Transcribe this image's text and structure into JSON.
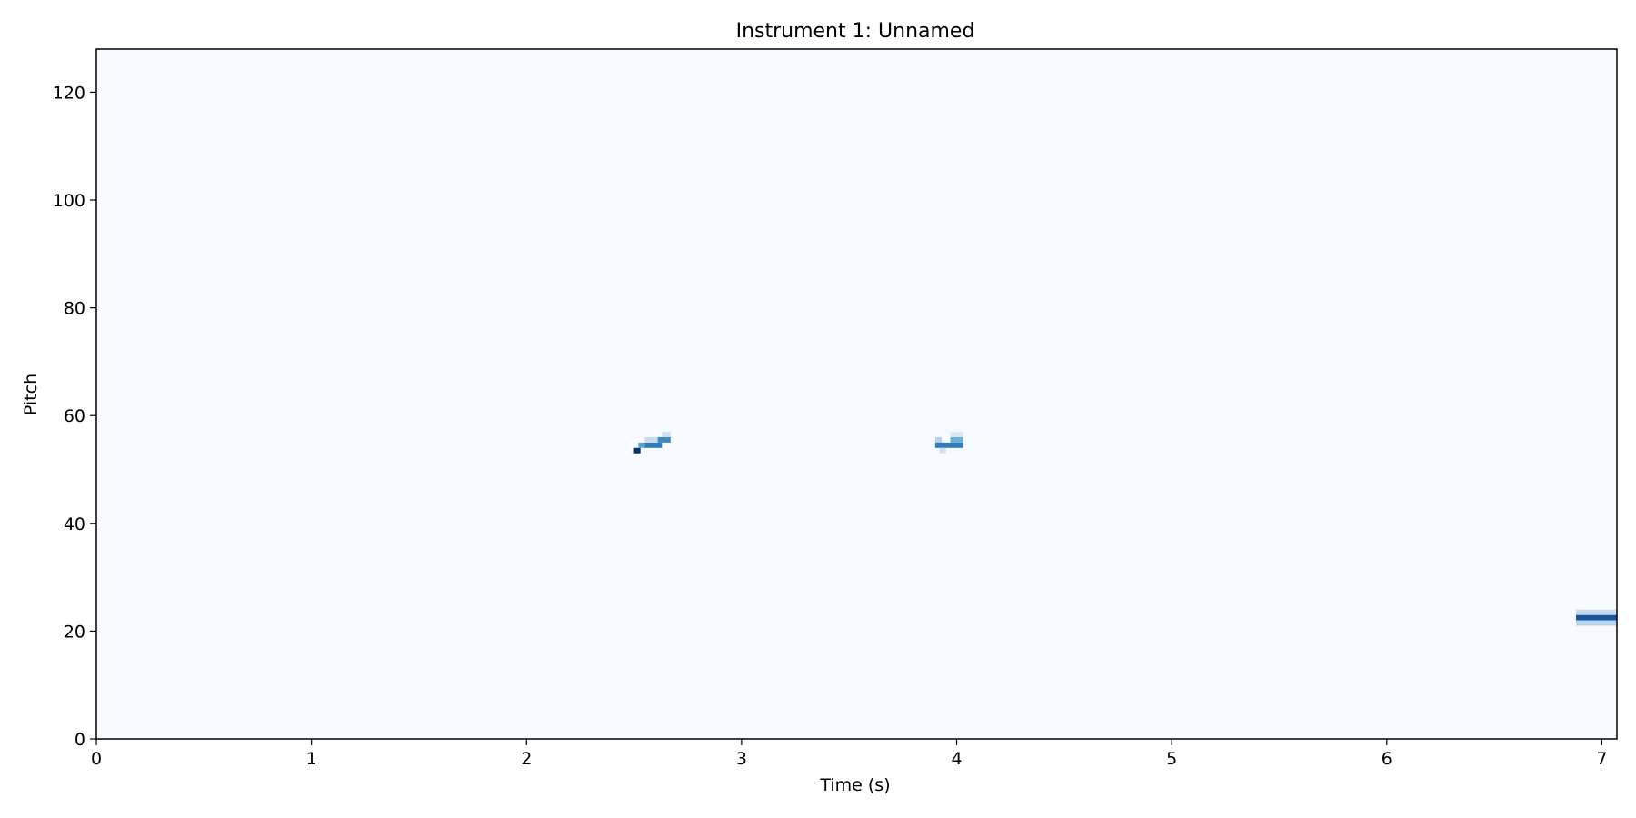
{
  "chart_data": {
    "type": "heatmap",
    "title": "Instrument 1: Unnamed",
    "xlabel": "Time (s)",
    "ylabel": "Pitch",
    "xlim": [
      0,
      7.07
    ],
    "ylim": [
      0,
      128
    ],
    "xticks": [
      0,
      1,
      2,
      3,
      4,
      5,
      6,
      7
    ],
    "yticks": [
      0,
      20,
      40,
      60,
      80,
      100,
      120
    ],
    "grid": false,
    "colormap": "Blues",
    "colors": {
      "background": "#f7fbff",
      "light": "#c6dbef",
      "mid": "#6baed6",
      "strong": "#2171b5",
      "darkest": "#08306b"
    },
    "notes": [
      {
        "pitch": 53,
        "start": 2.5,
        "end": 2.53,
        "intensity": 1.0
      },
      {
        "pitch": 54,
        "start": 2.52,
        "end": 2.55,
        "intensity": 0.55
      },
      {
        "pitch": 54,
        "start": 2.55,
        "end": 2.63,
        "intensity": 0.7
      },
      {
        "pitch": 55,
        "start": 2.55,
        "end": 2.63,
        "intensity": 0.25
      },
      {
        "pitch": 55,
        "start": 2.61,
        "end": 2.67,
        "intensity": 0.65
      },
      {
        "pitch": 56,
        "start": 2.63,
        "end": 2.67,
        "intensity": 0.2
      },
      {
        "pitch": 55,
        "start": 3.9,
        "end": 3.93,
        "intensity": 0.3
      },
      {
        "pitch": 54,
        "start": 3.9,
        "end": 4.03,
        "intensity": 0.7
      },
      {
        "pitch": 53,
        "start": 3.92,
        "end": 3.95,
        "intensity": 0.2
      },
      {
        "pitch": 55,
        "start": 3.97,
        "end": 4.03,
        "intensity": 0.5
      },
      {
        "pitch": 56,
        "start": 3.97,
        "end": 4.03,
        "intensity": 0.15
      },
      {
        "pitch": 22,
        "start": 6.88,
        "end": 7.07,
        "intensity": 0.85
      },
      {
        "pitch": 21,
        "start": 6.88,
        "end": 7.07,
        "intensity": 0.3
      },
      {
        "pitch": 23,
        "start": 6.88,
        "end": 7.07,
        "intensity": 0.25
      }
    ]
  }
}
